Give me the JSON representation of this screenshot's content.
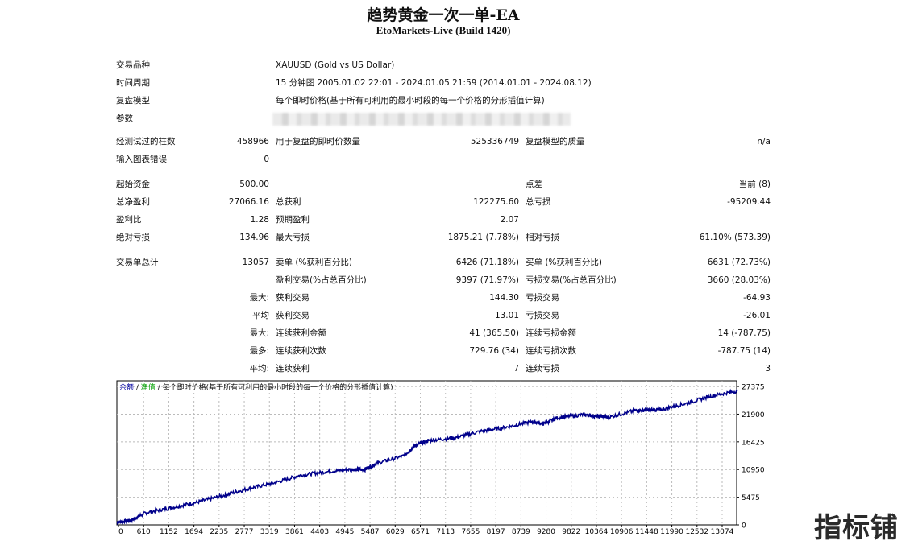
{
  "header": {
    "title": "趋势黄金一次一单-EA",
    "subtitle": "EtoMarkets-Live (Build 1420)"
  },
  "info": {
    "symbol_label": "交易品种",
    "symbol_value": "XAUUSD (Gold vs US Dollar)",
    "period_label": "时间周期",
    "period_value": "15 分钟图 2005.01.02 22:01 - 2024.01.05 21:59 (2014.01.01 - 2024.08.12)",
    "model_label": "复盘模型",
    "model_value": "每个即时价格(基于所有可利用的最小时段的每一个价格的分形插值计算)",
    "params_label": "参数"
  },
  "stats": {
    "bars_label": "经测试过的柱数",
    "bars_value": "458966",
    "ticks_label": "用于复盘的即时价数量",
    "ticks_value": "525336749",
    "quality_label": "复盘模型的质量",
    "quality_value": "n/a",
    "errors_label": "输入图表错误",
    "errors_value": "0",
    "deposit_label": "起始资金",
    "deposit_value": "500.00",
    "spread_label": "点差",
    "spread_value": "当前 (8)",
    "net_label": "总净盈利",
    "net_value": "27066.16",
    "gross_profit_label": "总获利",
    "gross_profit_value": "122275.60",
    "gross_loss_label": "总亏损",
    "gross_loss_value": "-95209.44",
    "pf_label": "盈利比",
    "pf_value": "1.28",
    "expected_label": "预期盈利",
    "expected_value": "2.07",
    "abs_dd_label": "绝对亏损",
    "abs_dd_value": "134.96",
    "max_dd_label": "最大亏损",
    "max_dd_value": "1875.21 (7.78%)",
    "rel_dd_label": "相对亏损",
    "rel_dd_value": "61.10% (573.39)",
    "total_trades_label": "交易单总计",
    "total_trades_value": "13057",
    "short_label": "卖单 (%获利百分比)",
    "short_value": "6426 (71.18%)",
    "long_label": "买单 (%获利百分比)",
    "long_value": "6631 (72.73%)",
    "profit_trades_label": "盈利交易(%占总百分比)",
    "profit_trades_value": "9397 (71.97%)",
    "loss_trades_label": "亏损交易(%占总百分比)",
    "loss_trades_value": "3660 (28.03%)",
    "max_prefix": "最大:",
    "largest_profit_label": "获利交易",
    "largest_profit_value": "144.30",
    "largest_loss_label": "亏损交易",
    "largest_loss_value": "-64.93",
    "avg_prefix": "平均",
    "avg_profit_label": "获利交易",
    "avg_profit_value": "13.01",
    "avg_loss_label": "亏损交易",
    "avg_loss_value": "-26.01",
    "max_prefix2": "最大:",
    "max_consec_win_label": "连续获利金额",
    "max_consec_win_value": "41 (365.50)",
    "max_consec_loss_label": "连续亏损金额",
    "max_consec_loss_value": "14 (-787.75)",
    "most_prefix": "最多:",
    "most_consec_win_label": "连续获利次数",
    "most_consec_win_value": "729.76 (34)",
    "most_consec_loss_label": "连续亏损次数",
    "most_consec_loss_value": "-787.75 (14)",
    "avg_prefix2": "平均:",
    "avg_consec_win_label": "连续获利",
    "avg_consec_win_value": "7",
    "avg_consec_loss_label": "连续亏损",
    "avg_consec_loss_value": "3"
  },
  "chart_legend": {
    "balance": "余额",
    "sep1": " / ",
    "equity": "净值",
    "sep2": " / ",
    "desc": "每个即时价格(基于所有可利用的最小时段的每一个价格的分形插值计算)"
  },
  "chart_data": {
    "type": "line",
    "title": "",
    "xlabel": "",
    "ylabel": "",
    "x_ticks": [
      "0",
      "610",
      "1152",
      "1694",
      "2235",
      "2777",
      "3319",
      "3861",
      "4403",
      "4945",
      "5487",
      "6029",
      "6571",
      "7113",
      "7655",
      "8197",
      "8739",
      "9280",
      "9822",
      "10364",
      "10906",
      "11448",
      "11990",
      "12532",
      "13074"
    ],
    "y_ticks": [
      "0",
      "5475",
      "10950",
      "16425",
      "21900",
      "27375"
    ],
    "ylim": [
      0,
      28500
    ],
    "xlim": [
      0,
      13057
    ],
    "grid": true,
    "series": [
      {
        "color": "#00008b",
        "x": [
          0,
          300,
          610,
          1152,
          1694,
          2235,
          2777,
          3319,
          3861,
          4403,
          4945,
          5200,
          5487,
          6029,
          6300,
          6571,
          7113,
          7655,
          8197,
          8739,
          9000,
          9280,
          9822,
          10100,
          10364,
          10906,
          11200,
          11448,
          11990,
          12532,
          13074
        ],
        "y": [
          500,
          900,
          2400,
          3400,
          4500,
          5800,
          7200,
          8300,
          9800,
          10500,
          11000,
          10900,
          12200,
          13600,
          15800,
          16700,
          17200,
          18500,
          19300,
          20400,
          20000,
          21200,
          21800,
          21500,
          21300,
          22600,
          22700,
          22800,
          24000,
          25500,
          26500
        ]
      }
    ]
  },
  "watermark": "指标铺"
}
